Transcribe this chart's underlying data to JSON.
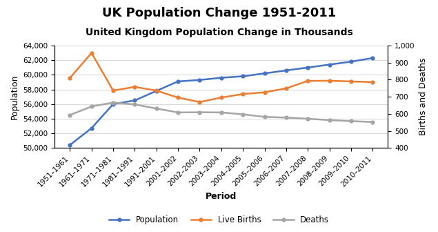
{
  "title": "UK Population Change 1951-2011",
  "subtitle": "United Kingdom Population Change in Thousands",
  "xlabel": "Period",
  "ylabel_left": "Population",
  "ylabel_right": "Births and Deaths",
  "periods": [
    "1951–1961",
    "1961–1971",
    "1971–1981",
    "1981–1991",
    "1991–2001",
    "2001–2002",
    "2002–2003",
    "2003–2004",
    "2004–2005",
    "2005–2006",
    "2006–2007",
    "2007–2008",
    "2008–2009",
    "2009–2010",
    "2010–2011"
  ],
  "population": [
    50400,
    52700,
    56000,
    56500,
    57800,
    59100,
    59300,
    59600,
    59800,
    60200,
    60600,
    61000,
    61400,
    61800,
    62300
  ],
  "live_births": [
    810,
    957,
    736,
    758,
    736,
    695,
    669,
    695,
    716,
    726,
    749,
    793,
    794,
    790,
    786
  ],
  "deaths": [
    593,
    643,
    666,
    655,
    631,
    608,
    609,
    608,
    597,
    582,
    578,
    571,
    563,
    557,
    552
  ],
  "pop_color": "#4472C4",
  "births_color": "#ED7D31",
  "deaths_color": "#A5A5A5",
  "ylim_left": [
    50000,
    64000
  ],
  "ylim_right": [
    400,
    1000
  ],
  "yticks_left": [
    50000,
    52000,
    54000,
    56000,
    58000,
    60000,
    62000,
    64000
  ],
  "yticks_right": [
    400,
    500,
    600,
    700,
    800,
    900,
    1000
  ],
  "background_color": "#FFFFFF",
  "legend_labels": [
    "Population",
    "Live Births",
    "Deaths"
  ],
  "title_fontsize": 13,
  "subtitle_fontsize": 10,
  "axis_label_fontsize": 9,
  "tick_fontsize": 7.5
}
